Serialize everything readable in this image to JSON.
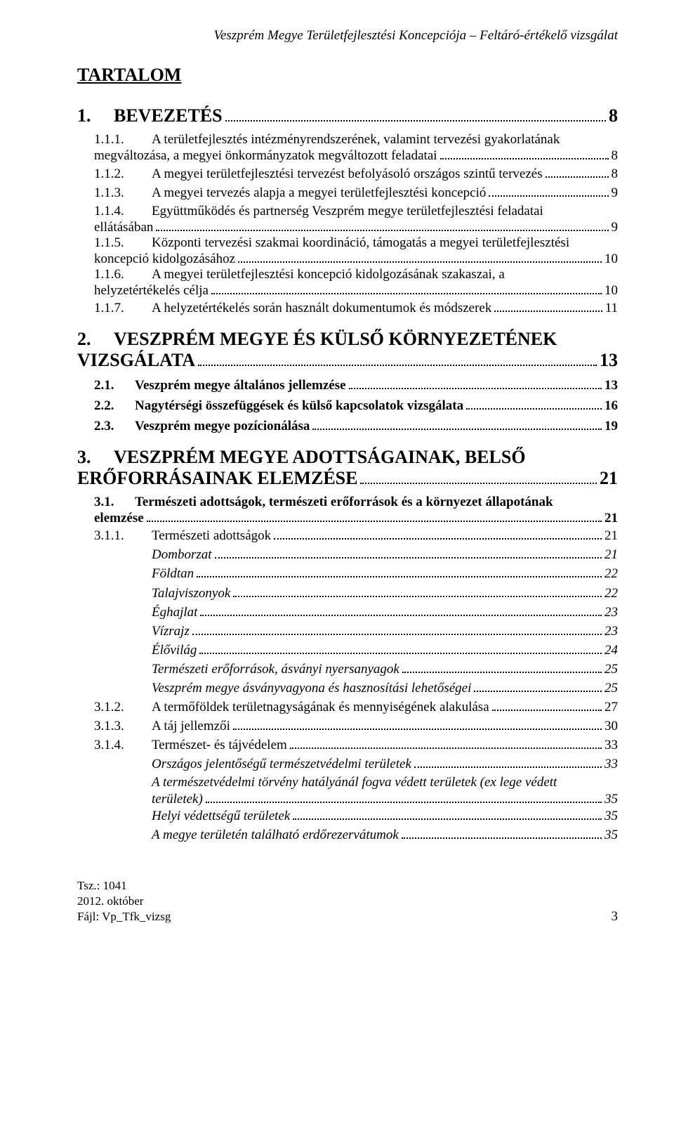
{
  "header": "Veszprém Megye Területfejlesztési Koncepciója – Feltáró-értékelő vizsgálat",
  "title": "TARTALOM",
  "entries": [
    {
      "level": "l1",
      "num": "1.",
      "text": "BEVEZETÉS",
      "page": "8"
    },
    {
      "level": "l3m",
      "num": "1.1.1.",
      "line1": "A területfejlesztés intézményrendszerének, valamint tervezési gyakorlatának",
      "line2": "megváltozása, a megyei önkormányzatok megváltozott feladatai",
      "page": "8"
    },
    {
      "level": "l3",
      "num": "1.1.2.",
      "text": "A megyei területfejlesztési tervezést befolyásoló országos szintű tervezés",
      "page": "8"
    },
    {
      "level": "l3",
      "num": "1.1.3.",
      "text": "A megyei tervezés alapja a megyei területfejlesztési koncepció",
      "page": "9"
    },
    {
      "level": "l3m",
      "num": "1.1.4.",
      "line1": "Együttműködés és partnerség Veszprém megye területfejlesztési feladatai",
      "line2": "ellátásában",
      "page": "9"
    },
    {
      "level": "l3m",
      "num": "1.1.5.",
      "line1": "Központi tervezési szakmai koordináció, támogatás a megyei területfejlesztési",
      "line2": "koncepció kidolgozásához",
      "page": "10"
    },
    {
      "level": "l3m",
      "num": "1.1.6.",
      "line1": "A megyei területfejlesztési koncepció kidolgozásának szakaszai, a",
      "line2": "helyzetértékelés célja",
      "page": "10"
    },
    {
      "level": "l3",
      "num": "1.1.7.",
      "text": "A helyzetértékelés során használt dokumentumok és módszerek",
      "page": "11"
    },
    {
      "level": "l1m",
      "num": "2.",
      "line1": "VESZPRÉM MEGYE ÉS KÜLSŐ KÖRNYEZETÉNEK",
      "line2": "VIZSGÁLATA",
      "page": "13"
    },
    {
      "level": "l2",
      "num": "2.1.",
      "text": "Veszprém megye általános jellemzése",
      "page": "13"
    },
    {
      "level": "l2",
      "num": "2.2.",
      "text": "Nagytérségi összefüggések és külső kapcsolatok vizsgálata",
      "page": "16"
    },
    {
      "level": "l2",
      "num": "2.3.",
      "text": "Veszprém megye pozícionálása",
      "page": "19"
    },
    {
      "level": "l1m",
      "num": "3.",
      "line1": "VESZPRÉM MEGYE ADOTTSÁGAINAK, BELSŐ",
      "line2": "ERŐFORRÁSAINAK ELEMZÉSE",
      "page": "21"
    },
    {
      "level": "l2m",
      "num": "3.1.",
      "line1": "Természeti adottságok, természeti erőforrások és a környezet állapotának",
      "line2": "elemzése",
      "page": "21"
    },
    {
      "level": "l3",
      "num": "3.1.1.",
      "text": "Természeti adottságok",
      "page": "21"
    },
    {
      "level": "l4",
      "text": "Domborzat",
      "page": "21"
    },
    {
      "level": "l4",
      "text": "Földtan",
      "page": "22"
    },
    {
      "level": "l4",
      "text": "Talajviszonyok",
      "page": "22"
    },
    {
      "level": "l4",
      "text": "Éghajlat",
      "page": "23"
    },
    {
      "level": "l4",
      "text": "Vízrajz",
      "page": "23"
    },
    {
      "level": "l4",
      "text": "Élővilág",
      "page": "24"
    },
    {
      "level": "l4",
      "text": "Természeti erőforrások, ásványi nyersanyagok",
      "page": "25"
    },
    {
      "level": "l4",
      "text": "Veszprém megye ásványvagyona és hasznosítási lehetőségei",
      "page": "25"
    },
    {
      "level": "l3",
      "num": "3.1.2.",
      "text": "A termőföldek területnagyságának és mennyiségének alakulása",
      "page": "27"
    },
    {
      "level": "l3",
      "num": "3.1.3.",
      "text": "A táj jellemzői",
      "page": "30"
    },
    {
      "level": "l3",
      "num": "3.1.4.",
      "text": "Természet- és tájvédelem",
      "page": "33"
    },
    {
      "level": "l4",
      "text": "Országos jelentőségű természetvédelmi területek",
      "page": "33"
    },
    {
      "level": "l4m",
      "line1": "A természetvédelmi törvény hatályánál fogva védett területek (ex lege védett",
      "line2": "területek)",
      "page": "35"
    },
    {
      "level": "l4",
      "text": "Helyi védettségű területek",
      "page": "35"
    },
    {
      "level": "l4",
      "text": "A megye területén található erdőrezervátumok",
      "page": "35"
    }
  ],
  "footer": {
    "line1": "Tsz.: 1041",
    "line2": "2012. október",
    "line3": "Fájl: Vp_Tfk_vizsg",
    "pageNumber": "3"
  }
}
